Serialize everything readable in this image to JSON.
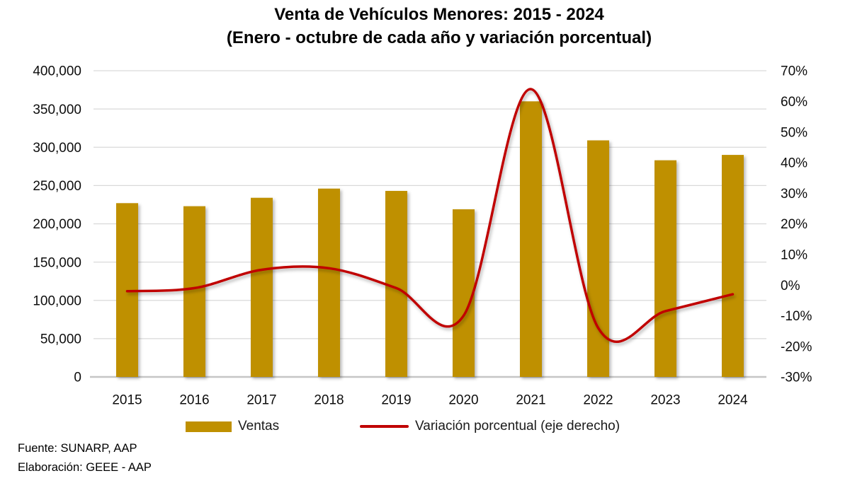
{
  "title": {
    "line1": "Venta de Vehículos Menores: 2015 - 2024",
    "line2": "(Enero - octubre de cada año y variación porcentual)"
  },
  "legend": {
    "ventas_label": "Ventas",
    "variacion_label": "Variación porcentual (eje derecho)"
  },
  "footer": {
    "fuente": "Fuente: SUNARP, AAP",
    "elaboracion": "Elaboración: GEEE - AAP"
  },
  "colors": {
    "bar": "#BF9000",
    "line": "#C00000",
    "gridline": "#D9D9D9",
    "axis": "#C6C6C6",
    "tick_text": "#0d0d0d"
  },
  "chart_data": {
    "type": "bar",
    "subtype": "combo bar + smoothed line, dual axis",
    "categories": [
      "2015",
      "2016",
      "2017",
      "2018",
      "2019",
      "2020",
      "2021",
      "2022",
      "2023",
      "2024"
    ],
    "series": [
      {
        "name": "Ventas",
        "type": "bar",
        "axis": "left",
        "values": [
          227000,
          223000,
          234000,
          246000,
          243000,
          219000,
          360000,
          309000,
          283000,
          290000
        ]
      },
      {
        "name": "Variación porcentual (eje derecho)",
        "type": "line",
        "axis": "right",
        "unit": "%",
        "values": [
          -2,
          -1,
          5,
          5.5,
          -1,
          -10,
          64,
          -14,
          -8.5,
          -3
        ]
      }
    ],
    "left_axis": {
      "min": 0,
      "max": 400000,
      "step": 50000,
      "tick_labels": [
        "400,000",
        "350,000",
        "300,000",
        "250,000",
        "200,000",
        "150,000",
        "100,000",
        "50,000",
        "0"
      ]
    },
    "right_axis": {
      "min": -30,
      "max": 70,
      "step": 10,
      "tick_labels": [
        "70%",
        "60%",
        "50%",
        "40%",
        "30%",
        "20%",
        "10%",
        "0%",
        "-10%",
        "-20%",
        "-30%"
      ]
    },
    "grid": "horizontal only",
    "legend_position": "bottom"
  }
}
